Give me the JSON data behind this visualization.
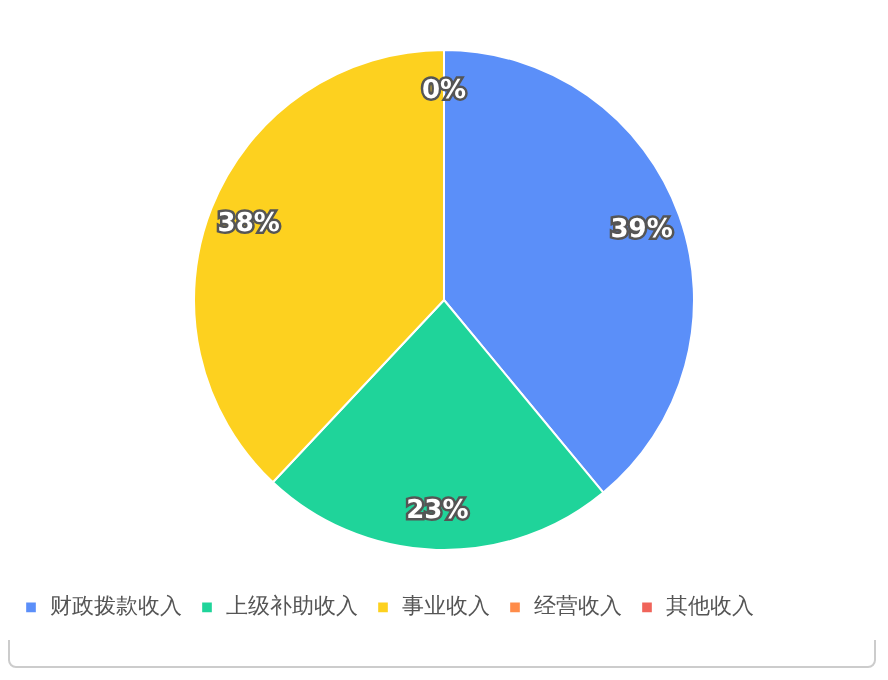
{
  "chart_data": {
    "type": "pie",
    "categories": [
      "财政拨款收入",
      "上级补助收入",
      "事业收入",
      "经营收入",
      "其他收入"
    ],
    "values": [
      39,
      23,
      38,
      0,
      0
    ],
    "colors": [
      "#5b8ff9",
      "#1fd49a",
      "#fdd11f",
      "#ff8c4a",
      "#f0645a"
    ],
    "value_labels": [
      "39%",
      "23%",
      "38%",
      "0%",
      null
    ],
    "legend": "bottom"
  }
}
